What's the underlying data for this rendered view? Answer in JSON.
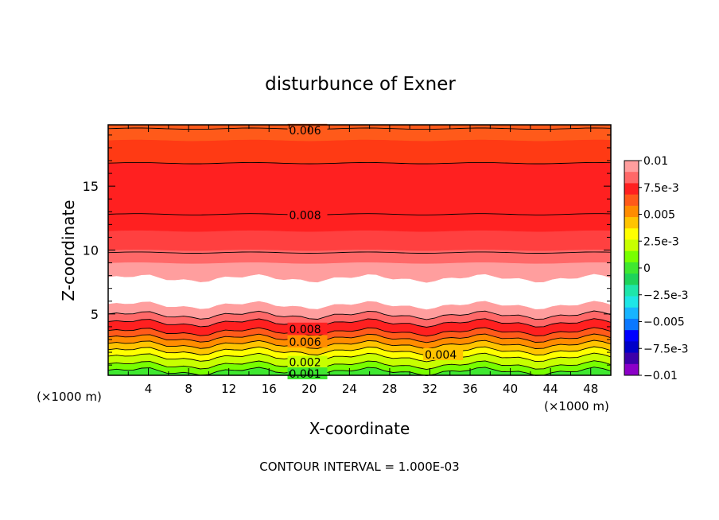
{
  "chart_data": {
    "type": "heatmap",
    "title": "disturbunce of Exner",
    "xlabel": "X-coordinate",
    "ylabel": "Z-coordinate",
    "x_unit_left": "(×1000 m)",
    "x_unit_right": "(×1000 m)",
    "footer": "CONTOUR INTERVAL = 1.000E-03",
    "xlim": [
      0,
      50
    ],
    "ylim": [
      0.2,
      19.8
    ],
    "x_ticks": [
      "4",
      "8",
      "12",
      "16",
      "20",
      "24",
      "28",
      "32",
      "36",
      "40",
      "44",
      "48"
    ],
    "y_ticks": [
      "5",
      "10",
      "15"
    ],
    "colorbar": {
      "labels": [
        "0.01",
        "7.5e-3",
        "0.005",
        "2.5e-3",
        "0",
        "−2.5e-3",
        "−0.005",
        "−7.5e-3",
        "−0.01"
      ],
      "colors": [
        "#ff9e9e",
        "#ff6868",
        "#ff2020",
        "#ff5a1a",
        "#ff8c00",
        "#ffc400",
        "#ffff00",
        "#c8ff00",
        "#78ff00",
        "#3fe830",
        "#1ed35a",
        "#1ee6aa",
        "#1ee6e6",
        "#17b4ff",
        "#0a78ff",
        "#0000ff",
        "#0000c8",
        "#3c00aa",
        "#8c00c8"
      ]
    },
    "bands": [
      {
        "z_bottom": 0.2,
        "z_top": 0.5,
        "color": "#3fe830"
      },
      {
        "z_bottom": 0.5,
        "z_top": 1.0,
        "color": "#78ff00"
      },
      {
        "z_bottom": 1.0,
        "z_top": 1.6,
        "color": "#c8ff00"
      },
      {
        "z_bottom": 1.6,
        "z_top": 2.1,
        "color": "#ffff00"
      },
      {
        "z_bottom": 2.1,
        "z_top": 2.6,
        "color": "#ffc400"
      },
      {
        "z_bottom": 2.6,
        "z_top": 3.1,
        "color": "#ff8c00"
      },
      {
        "z_bottom": 3.1,
        "z_top": 3.6,
        "color": "#ff5a1a"
      },
      {
        "z_bottom": 3.6,
        "z_top": 4.3,
        "color": "#ff2020"
      },
      {
        "z_bottom": 4.3,
        "z_top": 4.9,
        "color": "#ff6868"
      },
      {
        "z_bottom": 4.9,
        "z_top": 5.7,
        "color": "#ff9e9e"
      },
      {
        "z_bottom": 5.7,
        "z_top": 7.8,
        "color": "#ffffff"
      },
      {
        "z_bottom": 7.8,
        "z_top": 9.0,
        "color": "#ff9e9e"
      },
      {
        "z_bottom": 9.0,
        "z_top": 10.0,
        "color": "#ff6868"
      },
      {
        "z_bottom": 10.0,
        "z_top": 11.5,
        "color": "#ff4040"
      },
      {
        "z_bottom": 11.5,
        "z_top": 16.8,
        "color": "#ff2020"
      },
      {
        "z_bottom": 16.8,
        "z_top": 18.6,
        "color": "#ff3a14"
      },
      {
        "z_bottom": 18.6,
        "z_top": 19.8,
        "color": "#ff5a1a"
      }
    ],
    "contours": [
      {
        "z": 0.5
      },
      {
        "z": 1.0
      },
      {
        "z": 1.6
      },
      {
        "z": 2.1
      },
      {
        "z": 2.6
      },
      {
        "z": 3.1
      },
      {
        "z": 3.6
      },
      {
        "z": 4.3
      },
      {
        "z": 4.9
      },
      {
        "z": 9.8
      },
      {
        "z": 12.8
      },
      {
        "z": 16.8
      },
      {
        "z": 19.5
      }
    ],
    "contour_labels": [
      {
        "text": "0.006",
        "x": 18.0,
        "z": 19.4
      },
      {
        "text": "0.008",
        "x": 18.0,
        "z": 12.75
      },
      {
        "text": "0.008",
        "x": 18.0,
        "z": 3.9
      },
      {
        "text": "0.006",
        "x": 18.0,
        "z": 2.9
      },
      {
        "text": "0.004",
        "x": 31.5,
        "z": 2.15
      },
      {
        "text": "0.002",
        "x": 18.0,
        "z": 1.3
      },
      {
        "text": "0.001",
        "x": 18.0,
        "z": 0.4
      }
    ]
  }
}
